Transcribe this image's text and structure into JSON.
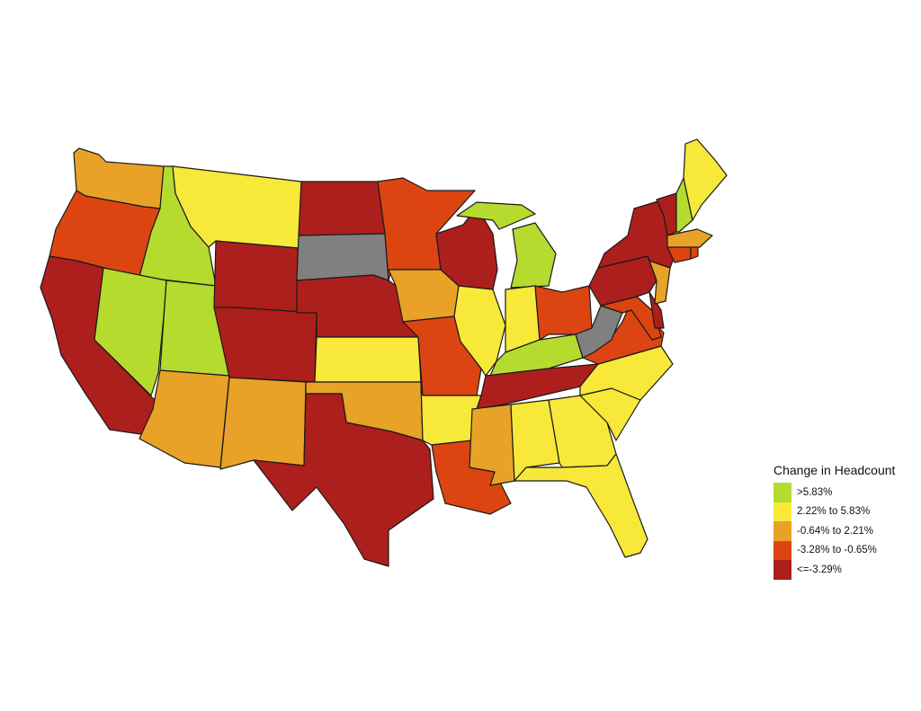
{
  "legend": {
    "title": "Change in Headcount",
    "classes": [
      {
        "key": "c1",
        "label": ">5.83%",
        "color": "#b5db2f"
      },
      {
        "key": "c2",
        "label": "2.22% to 5.83%",
        "color": "#f7e83a"
      },
      {
        "key": "c3",
        "label": "-0.64% to 2.21%",
        "color": "#e8a227"
      },
      {
        "key": "c4",
        "label": "-3.28% to -0.65%",
        "color": "#dc4511"
      },
      {
        "key": "c5",
        "label": "<=-3.29%",
        "color": "#ad1f1c"
      }
    ],
    "no_data_color": "#808080"
  },
  "states": {
    "WA": "c3",
    "OR": "c4",
    "CA": "c5",
    "ID": "c1",
    "NV": "c1",
    "UT": "c1",
    "AZ": "c3",
    "MT": "c2",
    "WY": "c5",
    "CO": "c5",
    "NM": "c3",
    "ND": "c5",
    "SD": "none",
    "NE": "c5",
    "KS": "c2",
    "OK": "c3",
    "TX": "c5",
    "MN": "c4",
    "IA": "c3",
    "MO": "c4",
    "AR": "c2",
    "LA": "c4",
    "WI": "c5",
    "IL": "c2",
    "MI": "c1",
    "IN": "c2",
    "OH": "c4",
    "KY": "c1",
    "TN": "c5",
    "MS": "c3",
    "AL": "c2",
    "GA": "c2",
    "FL": "c2",
    "SC": "c2",
    "NC": "c2",
    "VA": "c4",
    "WV": "none",
    "MD": "c4",
    "DE": "c5",
    "PA": "c5",
    "NJ": "c3",
    "NY": "c5",
    "CT": "c4",
    "RI": "c4",
    "MA": "c3",
    "VT": "c5",
    "NH": "c1",
    "ME": "c2"
  }
}
